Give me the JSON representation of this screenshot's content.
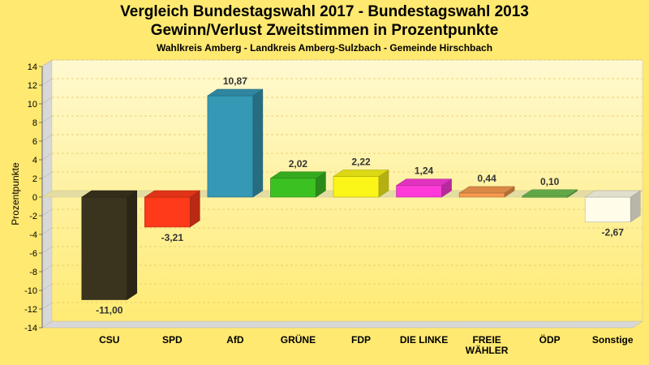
{
  "header": {
    "title_line1": "Vergleich Bundestagswahl 2017 - Bundestagswahl 2013",
    "title_line2": "Gewinn/Verlust Zweitstimmen in Prozentpunkte",
    "subtitle": "Wahlkreis Amberg - Landkreis Amberg-Sulzbach - Gemeinde Hirschbach"
  },
  "chart_data": {
    "type": "bar",
    "title": "Vergleich Bundestagswahl 2017 - Bundestagswahl 2013 / Gewinn/Verlust Zweitstimmen in Prozentpunkte",
    "subtitle": "Wahlkreis Amberg - Landkreis Amberg-Sulzbach - Gemeinde Hirschbach",
    "xlabel": "",
    "ylabel": "Prozentpunkte",
    "ylim": [
      -14,
      14
    ],
    "yticks": [
      -14,
      -12,
      -10,
      -8,
      -6,
      -4,
      -2,
      0,
      2,
      4,
      6,
      8,
      10,
      12,
      14
    ],
    "grid": true,
    "legend": "none",
    "categories": [
      "CSU",
      "SPD",
      "AfD",
      "GRÜNE",
      "FDP",
      "DIE LINKE",
      "FREIE WÄHLER",
      "ÖDP",
      "Sonstige"
    ],
    "category_lines": [
      [
        "CSU"
      ],
      [
        "SPD"
      ],
      [
        "AfD"
      ],
      [
        "GRÜNE"
      ],
      [
        "FDP"
      ],
      [
        "DIE LINKE"
      ],
      [
        "FREIE",
        "WÄHLER"
      ],
      [
        "ÖDP"
      ],
      [
        "Sonstige"
      ]
    ],
    "values": [
      -11.0,
      -3.21,
      10.87,
      2.02,
      2.22,
      1.24,
      0.44,
      0.1,
      -2.67
    ],
    "value_labels": [
      "-11,00",
      "-3,21",
      "10,87",
      "2,02",
      "2,22",
      "1,24",
      "0,44",
      "0,10",
      "-2,67"
    ],
    "colors": [
      "#3a331d",
      "#ff3a1a",
      "#3598b4",
      "#3cc122",
      "#fbf518",
      "#ff3ad9",
      "#f79a4e",
      "#6fbf52",
      "#fffde9"
    ]
  }
}
